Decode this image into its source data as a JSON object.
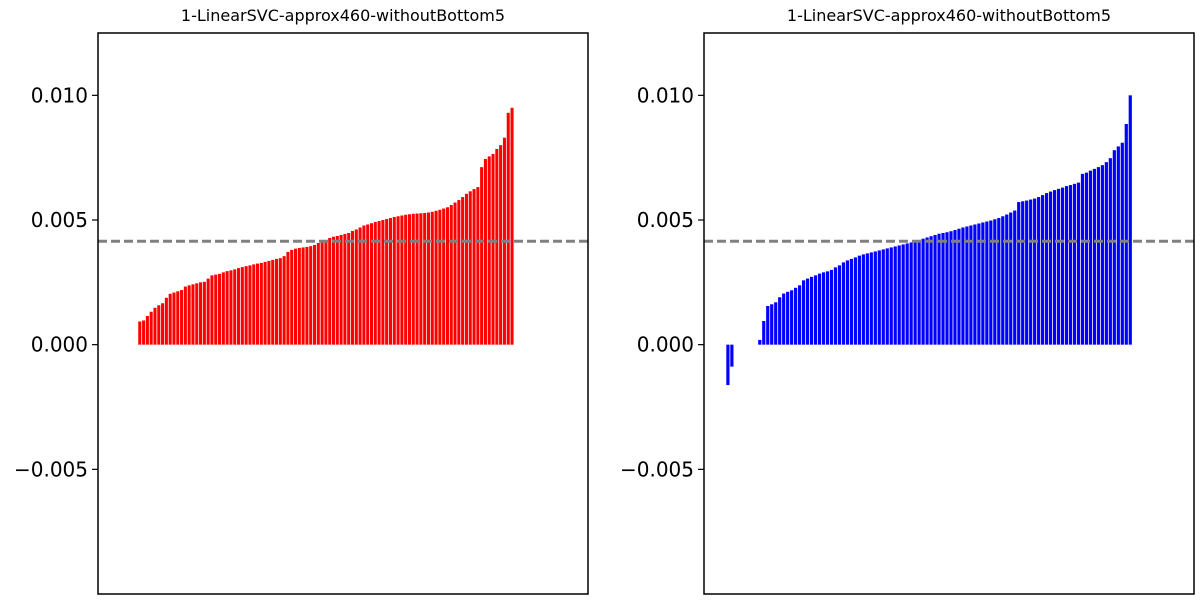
{
  "chart_data": [
    {
      "type": "bar",
      "title": "1-LinearSVC-approx460-withoutBottom5",
      "xlabel": "",
      "ylabel": "",
      "ylim": [
        -0.01,
        0.0125
      ],
      "yticks": [
        -0.005,
        0.0,
        0.005,
        0.01
      ],
      "ytick_labels": [
        "−0.005",
        "0.000",
        "0.005",
        "0.010"
      ],
      "xlim": [
        -11,
        118
      ],
      "x_ticks_shown": false,
      "grid": false,
      "reference_line": {
        "value": 0.00415,
        "color": "#808080",
        "style": "dashed"
      },
      "bar_color": "#ff0000",
      "values": [
        0.00093,
        0.00097,
        0.00115,
        0.00132,
        0.00148,
        0.00158,
        0.00166,
        0.00188,
        0.00204,
        0.00209,
        0.00214,
        0.00219,
        0.00233,
        0.00238,
        0.00242,
        0.00246,
        0.0025,
        0.00252,
        0.00265,
        0.00278,
        0.00281,
        0.00284,
        0.0029,
        0.00295,
        0.00298,
        0.00302,
        0.00307,
        0.00311,
        0.00315,
        0.00318,
        0.00322,
        0.00325,
        0.00328,
        0.00332,
        0.00336,
        0.0034,
        0.00344,
        0.00347,
        0.00355,
        0.00372,
        0.0038,
        0.00385,
        0.00388,
        0.0039,
        0.00392,
        0.00395,
        0.004,
        0.00408,
        0.00415,
        0.0042,
        0.00428,
        0.00433,
        0.00436,
        0.0044,
        0.00444,
        0.00448,
        0.00456,
        0.00462,
        0.0047,
        0.00478,
        0.00482,
        0.00487,
        0.00492,
        0.00496,
        0.005,
        0.00504,
        0.00508,
        0.00512,
        0.00515,
        0.00518,
        0.00521,
        0.00523,
        0.00525,
        0.00526,
        0.00527,
        0.00528,
        0.0053,
        0.00533,
        0.00537,
        0.00541,
        0.00546,
        0.00551,
        0.0056,
        0.0057,
        0.0058,
        0.00592,
        0.00605,
        0.00615,
        0.00624,
        0.00632,
        0.00712,
        0.00745,
        0.00755,
        0.00765,
        0.00785,
        0.008,
        0.0083,
        0.0093,
        0.0095
      ]
    },
    {
      "type": "bar",
      "title": "1-LinearSVC-approx460-withoutBottom5",
      "xlabel": "",
      "ylabel": "",
      "ylim": [
        -0.01,
        0.0125
      ],
      "yticks": [
        -0.005,
        0.0,
        0.005,
        0.01
      ],
      "ytick_labels": [
        "−0.005",
        "0.000",
        "0.005",
        "0.010"
      ],
      "xlim": [
        -6,
        117
      ],
      "x_ticks_shown": false,
      "grid": false,
      "reference_line": {
        "value": 0.00415,
        "color": "#808080",
        "style": "dashed"
      },
      "bar_color": "#0000ff",
      "values": [
        -0.00162,
        -0.00088,
        0,
        0,
        0,
        0,
        0,
        0,
        0.00019,
        0.00095,
        0.00155,
        0.00162,
        0.0017,
        0.0019,
        0.00205,
        0.00212,
        0.00218,
        0.00228,
        0.00238,
        0.00258,
        0.00265,
        0.00272,
        0.00278,
        0.00285,
        0.0029,
        0.00294,
        0.003,
        0.0031,
        0.00318,
        0.0033,
        0.00338,
        0.00344,
        0.0035,
        0.00357,
        0.00362,
        0.00366,
        0.0037,
        0.00374,
        0.00378,
        0.00382,
        0.00386,
        0.0039,
        0.00394,
        0.00398,
        0.00402,
        0.00406,
        0.0041,
        0.00415,
        0.0042,
        0.00425,
        0.0043,
        0.00435,
        0.0044,
        0.00445,
        0.00448,
        0.00451,
        0.00455,
        0.0046,
        0.00465,
        0.0047,
        0.00474,
        0.00478,
        0.00482,
        0.00486,
        0.0049,
        0.00494,
        0.00498,
        0.00503,
        0.00508,
        0.00515,
        0.00522,
        0.0053,
        0.00538,
        0.00572,
        0.00575,
        0.00578,
        0.00582,
        0.00586,
        0.00592,
        0.006,
        0.00608,
        0.00614,
        0.0062,
        0.00625,
        0.0063,
        0.00636,
        0.0064,
        0.00645,
        0.0065,
        0.00685,
        0.0069,
        0.00698,
        0.00705,
        0.00712,
        0.0072,
        0.00732,
        0.00748,
        0.0078,
        0.00795,
        0.0081,
        0.00885,
        0.01
      ]
    }
  ]
}
